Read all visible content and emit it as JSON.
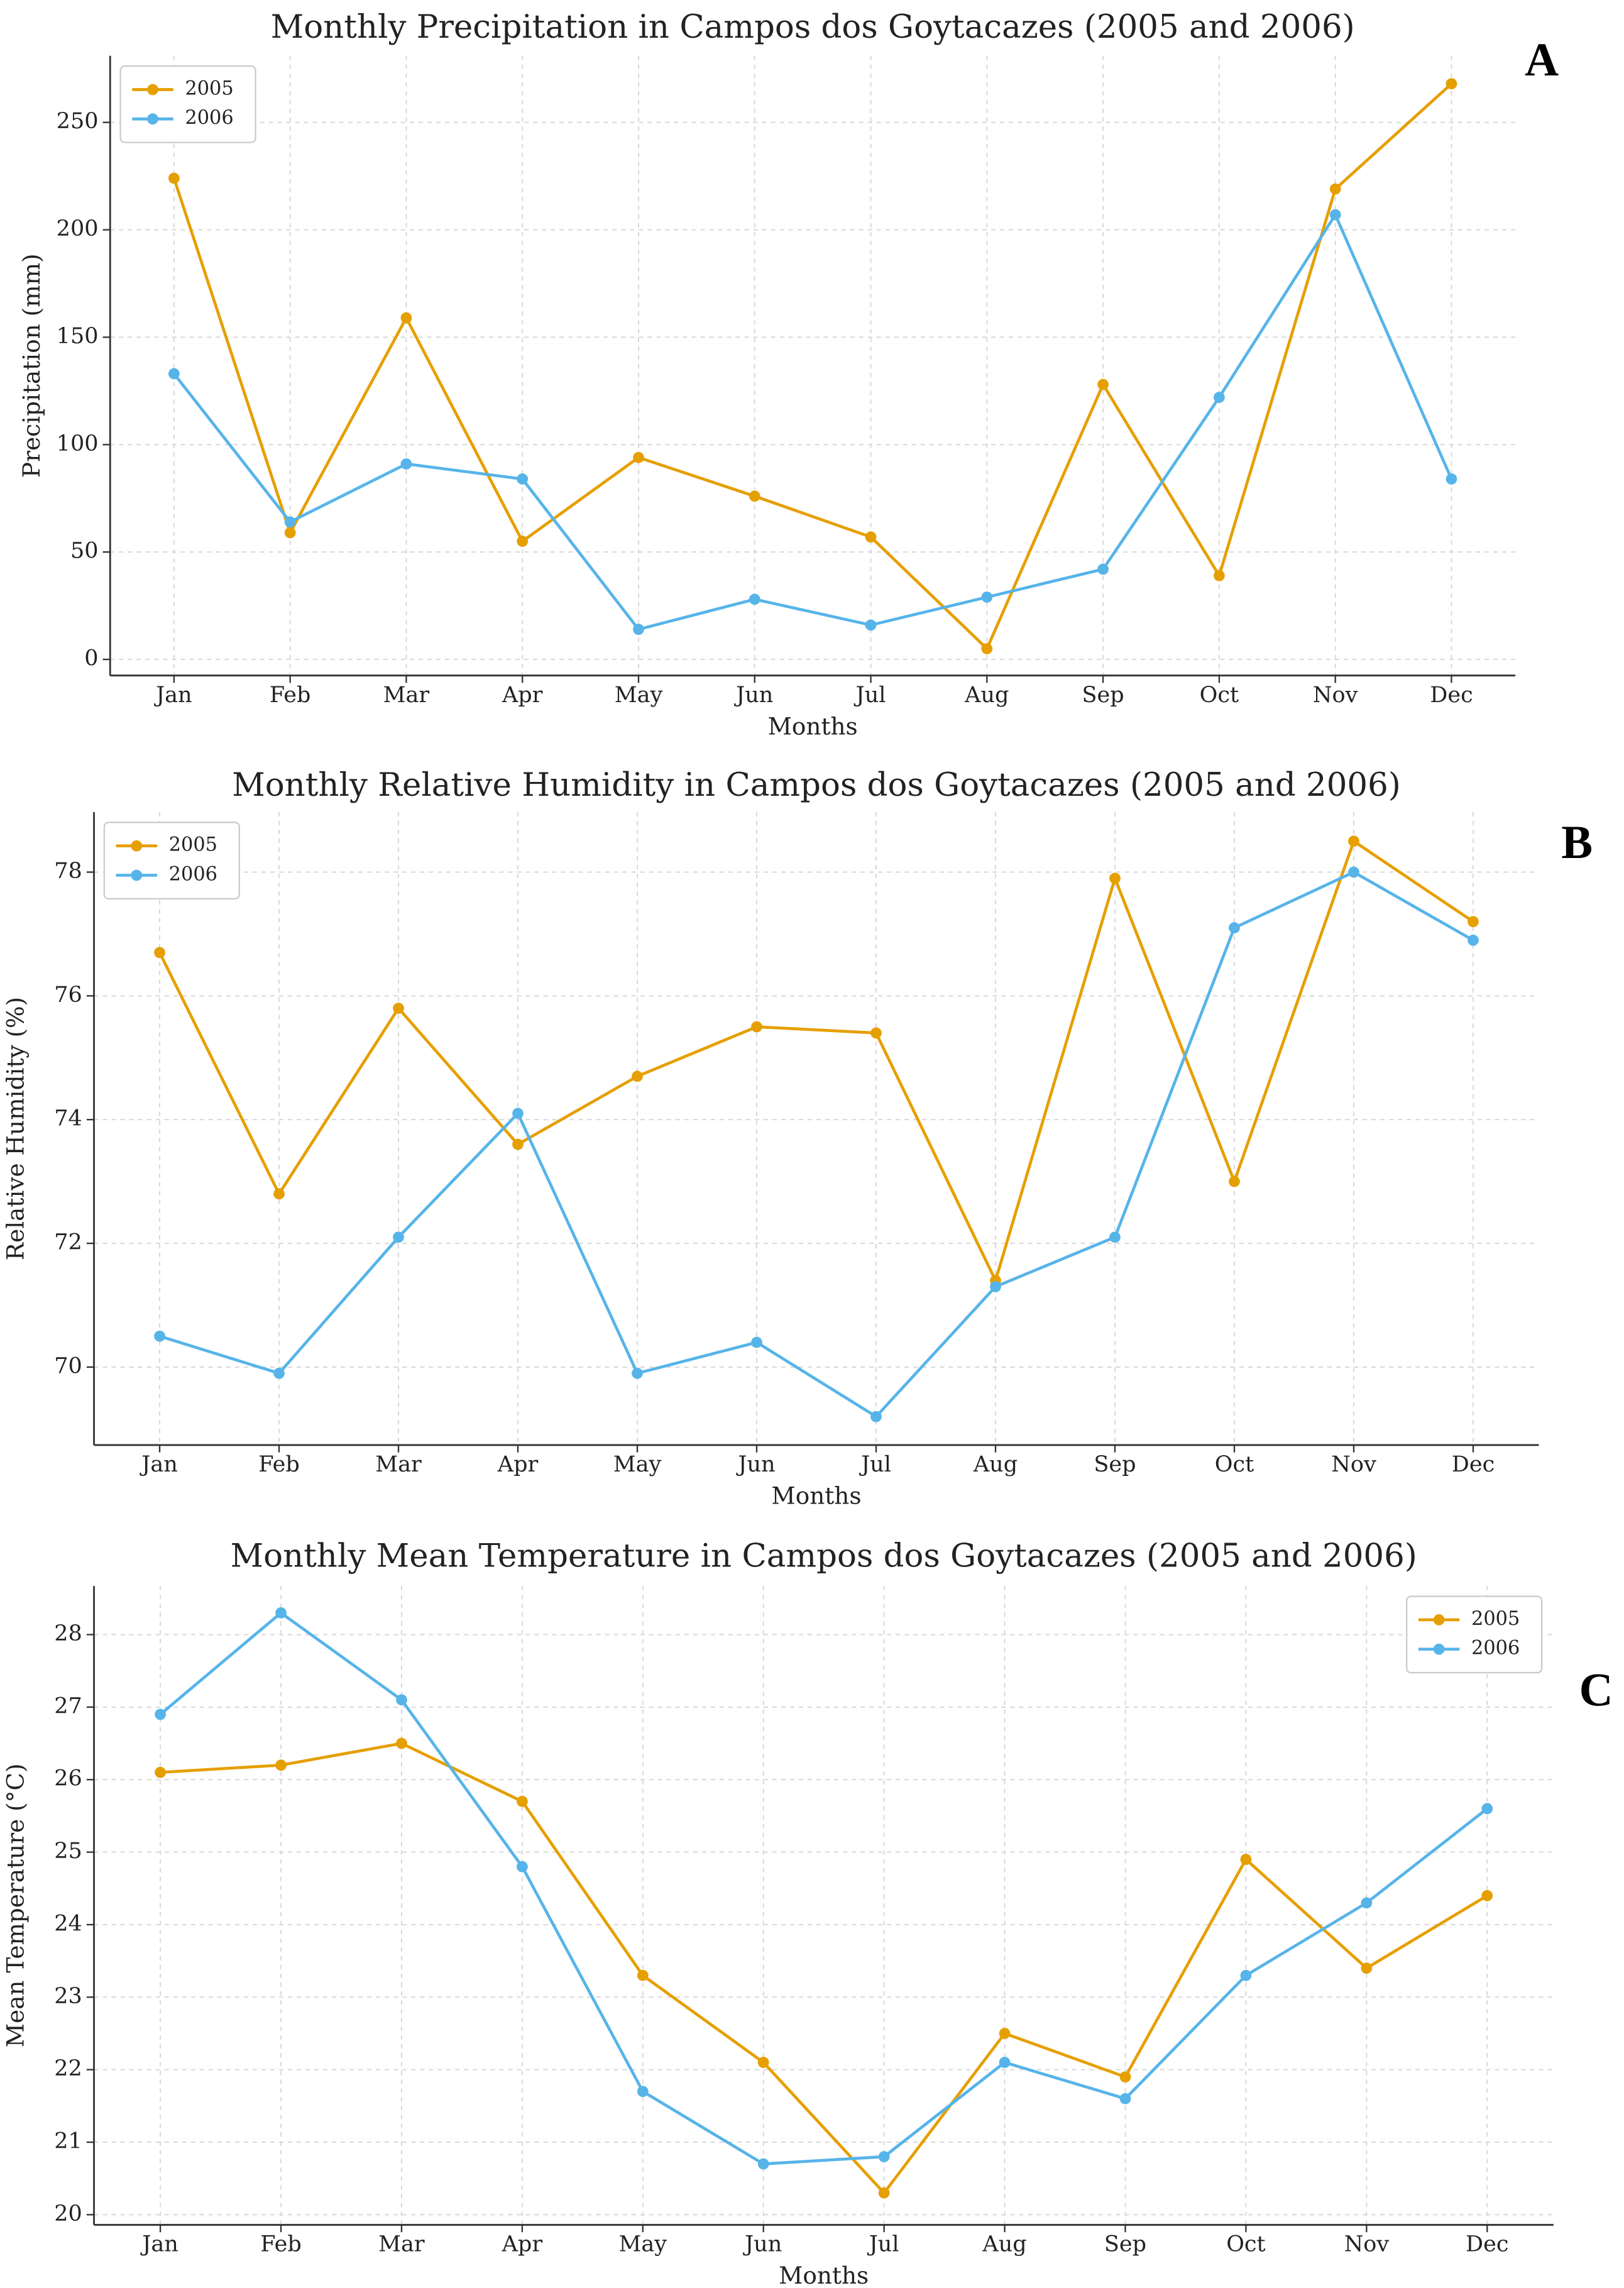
{
  "chart_data": [
    {
      "type": "line",
      "panel_label": "A",
      "title": "Monthly Precipitation in Campos dos Goytacazes (2005 and 2006)",
      "x_label": "Months",
      "y_label": "Precipitation (mm)",
      "categories": [
        "Jan",
        "Feb",
        "Mar",
        "Apr",
        "May",
        "Jun",
        "Jul",
        "Aug",
        "Sep",
        "Oct",
        "Nov",
        "Dec"
      ],
      "series": [
        {
          "name": "2005",
          "color": "#E69F00",
          "values": [
            224,
            59,
            159,
            55,
            94,
            76,
            57,
            5,
            128,
            39,
            219,
            268
          ]
        },
        {
          "name": "2006",
          "color": "#56B4E9",
          "values": [
            133,
            64,
            91,
            84,
            14,
            28,
            16,
            29,
            42,
            122,
            207,
            84
          ]
        }
      ],
      "ylim": [
        -7.5,
        281
      ],
      "yticks": [
        0,
        50,
        100,
        150,
        200,
        250
      ],
      "grid": true,
      "legend": "upper left"
    },
    {
      "type": "line",
      "panel_label": "B",
      "title": "Monthly Relative Humidity in Campos dos Goytacazes (2005 and 2006)",
      "x_label": "Months",
      "y_label": "Relative Humidity (%)",
      "categories": [
        "Jan",
        "Feb",
        "Mar",
        "Apr",
        "May",
        "Jun",
        "Jul",
        "Aug",
        "Sep",
        "Oct",
        "Nov",
        "Dec"
      ],
      "series": [
        {
          "name": "2005",
          "color": "#E69F00",
          "values": [
            76.7,
            72.8,
            75.8,
            73.6,
            74.7,
            75.5,
            75.4,
            71.4,
            77.9,
            73.0,
            78.5,
            77.2
          ]
        },
        {
          "name": "2006",
          "color": "#56B4E9",
          "values": [
            70.5,
            69.9,
            72.1,
            74.1,
            69.9,
            70.4,
            69.2,
            71.3,
            72.1,
            77.1,
            78.0,
            76.9
          ]
        }
      ],
      "ylim": [
        68.74,
        78.97
      ],
      "yticks": [
        70,
        72,
        74,
        76,
        78
      ],
      "grid": true,
      "legend": "upper left"
    },
    {
      "type": "line",
      "panel_label": "C",
      "title": "Monthly Mean Temperature in Campos dos Goytacazes (2005 and 2006)",
      "x_label": "Months",
      "y_label": "Mean Temperature (°C)",
      "categories": [
        "Jan",
        "Feb",
        "Mar",
        "Apr",
        "May",
        "Jun",
        "Jul",
        "Aug",
        "Sep",
        "Oct",
        "Nov",
        "Dec"
      ],
      "series": [
        {
          "name": "2005",
          "color": "#E69F00",
          "values": [
            26.1,
            26.2,
            26.5,
            25.7,
            23.3,
            22.1,
            20.3,
            22.5,
            21.9,
            24.9,
            23.4,
            24.4
          ]
        },
        {
          "name": "2006",
          "color": "#56B4E9",
          "values": [
            26.9,
            28.3,
            27.1,
            24.8,
            21.7,
            20.7,
            20.8,
            22.1,
            21.6,
            23.3,
            24.3,
            25.6
          ]
        }
      ],
      "ylim": [
        19.86,
        28.67
      ],
      "yticks": [
        20,
        21,
        22,
        23,
        24,
        25,
        26,
        27,
        28
      ],
      "grid": true,
      "legend": "upper right"
    }
  ]
}
